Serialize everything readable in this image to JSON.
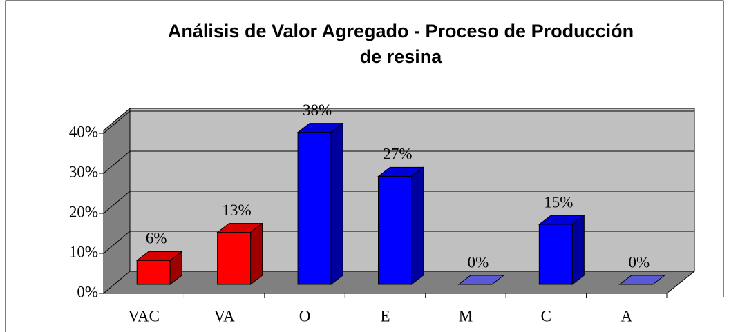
{
  "chart_data": {
    "type": "bar3d",
    "title": [
      "Análisis de Valor Agregado - Proceso de Producción",
      "de resina"
    ],
    "categories": [
      "VAC",
      "VA",
      "O",
      "E",
      "M",
      "C",
      "A"
    ],
    "values": [
      6,
      13,
      38,
      27,
      0,
      15,
      0
    ],
    "value_labels": [
      "6%",
      "13%",
      "38%",
      "27%",
      "0%",
      "15%",
      "0%"
    ],
    "colors": [
      "#ff0000",
      "#ff0000",
      "#0000ff",
      "#0000ff",
      "#0000ff",
      "#0000ff",
      "#0000ff"
    ],
    "ylim": [
      0,
      40
    ],
    "yticks": [
      {
        "value": 0,
        "label": "0%"
      },
      {
        "value": 10,
        "label": "10%"
      },
      {
        "value": 20,
        "label": "20%"
      },
      {
        "value": 30,
        "label": "30%"
      },
      {
        "value": 40,
        "label": "40%"
      }
    ],
    "grid": true
  }
}
